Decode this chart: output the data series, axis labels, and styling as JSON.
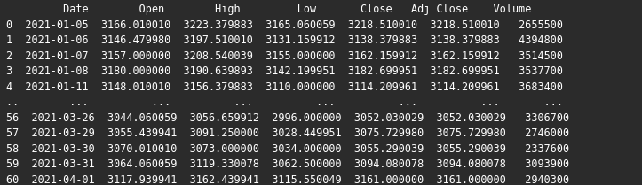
{
  "background_color": "#2b2b2b",
  "text_color": "#ffffff",
  "font_family": "monospace",
  "font_size": 8.5,
  "figsize": [
    7.23,
    2.09
  ],
  "dpi": 100,
  "header": "         Date        Open        High         Low       Close   Adj Close    Volume",
  "rows": [
    "0  2021-01-05  3166.010010  3223.379883  3165.060059  3218.510010  3218.510010   2655500",
    "1  2021-01-06  3146.479980  3197.510010  3131.159912  3138.379883  3138.379883   4394800",
    "2  2021-01-07  3157.000000  3208.540039  3155.000000  3162.159912  3162.159912   3514500",
    "3  2021-01-08  3180.000000  3190.639893  3142.199951  3182.699951  3182.699951   3537700",
    "4  2021-01-11  3148.010010  3156.379883  3110.000000  3114.209961  3114.209961   3683400",
    "..        ...          ...          ...          ...          ...          ...       ...",
    "56  2021-03-26  3044.060059  3056.659912  2996.000000  3052.030029  3052.030029   3306700",
    "57  2021-03-29  3055.439941  3091.250000  3028.449951  3075.729980  3075.729980   2746000",
    "58  2021-03-30  3070.010010  3073.000000  3034.000000  3055.290039  3055.290039   2337600",
    "59  2021-03-31  3064.060059  3119.330078  3062.500000  3094.080078  3094.080078   3093900",
    "60  2021-04-01  3117.939941  3162.439941  3115.550049  3161.000000  3161.000000   2940300"
  ]
}
